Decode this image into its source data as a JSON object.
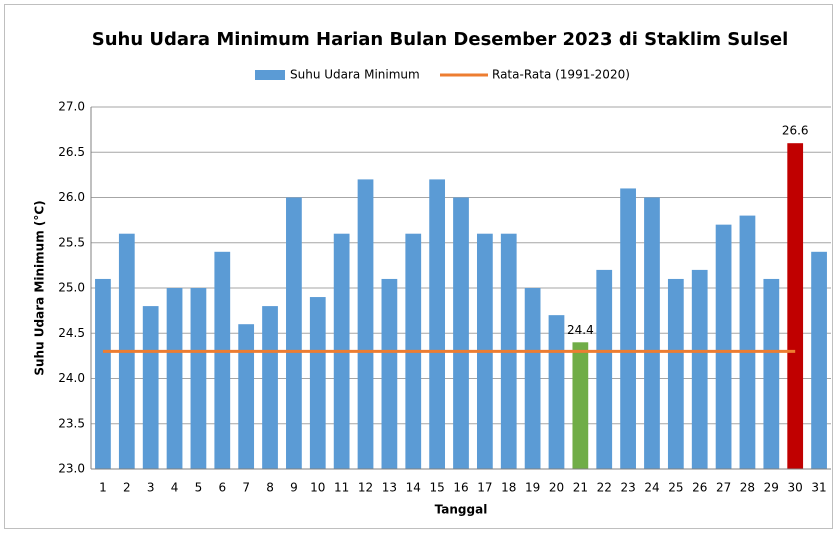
{
  "chart_data": {
    "type": "bar",
    "title": "Suhu Udara Minimum Harian Bulan Desember 2023 di Staklim Sulsel",
    "x_label": "Tanggal",
    "y_label": "Suhu Udara Minimum (°C)",
    "categories": [
      "1",
      "2",
      "3",
      "4",
      "5",
      "6",
      "7",
      "8",
      "9",
      "10",
      "11",
      "12",
      "13",
      "14",
      "15",
      "16",
      "17",
      "18",
      "19",
      "20",
      "21",
      "22",
      "23",
      "24",
      "25",
      "26",
      "27",
      "28",
      "29",
      "30",
      "31"
    ],
    "series": [
      {
        "name": "Suhu Udara Minimum",
        "type": "bar",
        "color": "#5b9bd5",
        "colors": [
          "#5b9bd5",
          "#5b9bd5",
          "#5b9bd5",
          "#5b9bd5",
          "#5b9bd5",
          "#5b9bd5",
          "#5b9bd5",
          "#5b9bd5",
          "#5b9bd5",
          "#5b9bd5",
          "#5b9bd5",
          "#5b9bd5",
          "#5b9bd5",
          "#5b9bd5",
          "#5b9bd5",
          "#5b9bd5",
          "#5b9bd5",
          "#5b9bd5",
          "#5b9bd5",
          "#5b9bd5",
          "#70ad47",
          "#5b9bd5",
          "#5b9bd5",
          "#5b9bd5",
          "#5b9bd5",
          "#5b9bd5",
          "#5b9bd5",
          "#5b9bd5",
          "#5b9bd5",
          "#c00000",
          "#5b9bd5"
        ],
        "values": [
          25.1,
          25.6,
          24.8,
          25.0,
          25.0,
          25.4,
          24.6,
          24.8,
          26.0,
          24.9,
          25.6,
          26.2,
          25.1,
          25.6,
          26.2,
          26.0,
          25.6,
          25.6,
          25.0,
          24.7,
          24.4,
          25.2,
          26.1,
          26.0,
          25.1,
          25.2,
          25.7,
          25.8,
          25.1,
          26.6,
          25.4
        ],
        "value_labels": [
          null,
          null,
          null,
          null,
          null,
          null,
          null,
          null,
          null,
          null,
          null,
          null,
          null,
          null,
          null,
          null,
          null,
          null,
          null,
          null,
          "24.4",
          null,
          null,
          null,
          null,
          null,
          null,
          null,
          null,
          "26.6",
          null
        ]
      },
      {
        "name": "Rata-Rata (1991-2020)",
        "type": "line",
        "color": "#ed7d31",
        "values": [
          24.3,
          24.3,
          24.3,
          24.3,
          24.3,
          24.3,
          24.3,
          24.3,
          24.3,
          24.3,
          24.3,
          24.3,
          24.3,
          24.3,
          24.3,
          24.3,
          24.3,
          24.3,
          24.3,
          24.3,
          24.3,
          24.3,
          24.3,
          24.3,
          24.3,
          24.3,
          24.3,
          24.3,
          24.3,
          24.3,
          null
        ]
      }
    ],
    "ylim": [
      23.0,
      27.0
    ],
    "yticks": [
      {
        "value": 23.0,
        "label": "23.0"
      },
      23.5,
      {
        "value": 24.0,
        "label": "24.0"
      },
      24.5,
      {
        "value": 25.0,
        "label": "25.0"
      },
      25.5,
      {
        "value": 26.0,
        "label": "26.0"
      },
      26.5,
      {
        "value": 27.0,
        "label": "27.0"
      }
    ],
    "grid": true,
    "legend": "top"
  }
}
